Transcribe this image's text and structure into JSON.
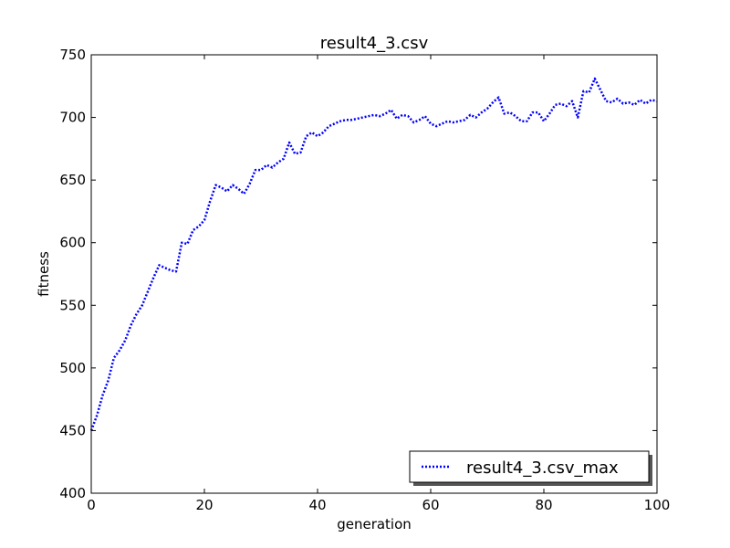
{
  "chart_data": {
    "type": "line",
    "title": "result4_3.csv",
    "xlabel": "generation",
    "ylabel": "fitness",
    "xlim": [
      0,
      100
    ],
    "ylim": [
      400,
      750
    ],
    "xticks": [
      0,
      20,
      40,
      60,
      80,
      100
    ],
    "yticks": [
      400,
      450,
      500,
      550,
      600,
      650,
      700,
      750
    ],
    "grid": false,
    "legend_position": "lower-right",
    "series": [
      {
        "name": "result4_3.csv_max",
        "color": "#0000ff",
        "line_style": "dotted",
        "x": [
          0,
          1,
          2,
          3,
          4,
          5,
          6,
          7,
          8,
          9,
          10,
          11,
          12,
          13,
          14,
          15,
          16,
          17,
          18,
          19,
          20,
          21,
          22,
          23,
          24,
          25,
          26,
          27,
          28,
          29,
          30,
          31,
          32,
          33,
          34,
          35,
          36,
          37,
          38,
          39,
          40,
          41,
          42,
          43,
          44,
          45,
          46,
          47,
          48,
          49,
          50,
          51,
          52,
          53,
          54,
          55,
          56,
          57,
          58,
          59,
          60,
          61,
          62,
          63,
          64,
          65,
          66,
          67,
          68,
          69,
          70,
          71,
          72,
          73,
          74,
          75,
          76,
          77,
          78,
          79,
          80,
          81,
          82,
          83,
          84,
          85,
          86,
          87,
          88,
          89,
          90,
          91,
          92,
          93,
          94,
          95,
          96,
          97,
          98,
          99,
          100
        ],
        "y": [
          450,
          462,
          478,
          490,
          508,
          514,
          522,
          534,
          543,
          550,
          561,
          572,
          582,
          580,
          578,
          577,
          600,
          599,
          610,
          613,
          618,
          633,
          646,
          644,
          641,
          646,
          643,
          639,
          647,
          658,
          658,
          662,
          660,
          664,
          667,
          680,
          671,
          672,
          685,
          688,
          685,
          688,
          693,
          695,
          697,
          698,
          698,
          699,
          700,
          701,
          702,
          701,
          703,
          706,
          699,
          702,
          701,
          696,
          698,
          701,
          695,
          693,
          695,
          697,
          696,
          697,
          698,
          702,
          700,
          704,
          707,
          712,
          716,
          703,
          704,
          701,
          697,
          697,
          704,
          704,
          697,
          703,
          710,
          711,
          709,
          713,
          700,
          721,
          720,
          731,
          722,
          713,
          712,
          715,
          711,
          712,
          710,
          714,
          711,
          714,
          713
        ]
      }
    ]
  }
}
